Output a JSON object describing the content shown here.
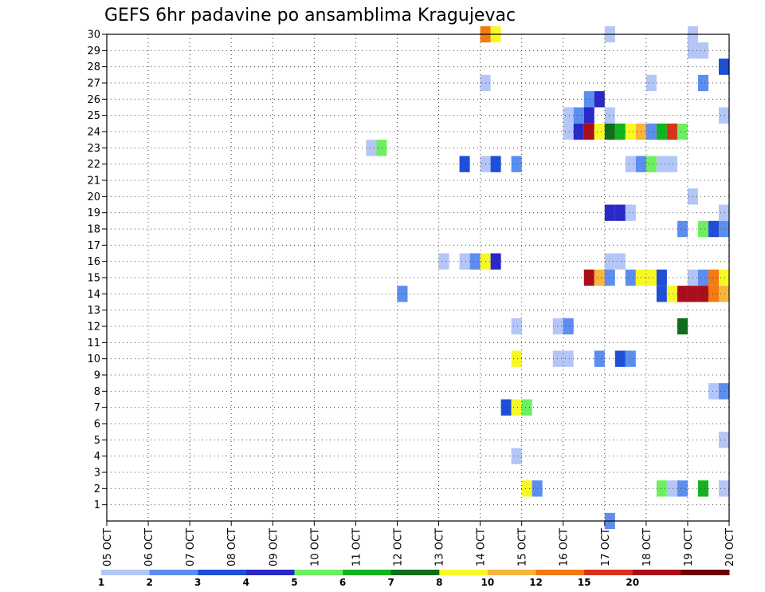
{
  "chart_data": {
    "type": "heatmap",
    "title": "GEFS 6hr padavine po ansamblima Kragujevac",
    "xlabel": "",
    "ylabel": "",
    "x_ticks": [
      "05 OCT",
      "06 OCT",
      "07 OCT",
      "08 OCT",
      "09 OCT",
      "10 OCT",
      "11 OCT",
      "12 OCT",
      "13 OCT",
      "14 OCT",
      "15 OCT",
      "16 OCT",
      "17 OCT",
      "18 OCT",
      "19 OCT",
      "20 OCT"
    ],
    "x_range": [
      0,
      60
    ],
    "y_ticks": [
      1,
      2,
      3,
      4,
      5,
      6,
      7,
      8,
      9,
      10,
      11,
      12,
      13,
      14,
      15,
      16,
      17,
      18,
      19,
      20,
      21,
      22,
      23,
      24,
      25,
      26,
      27,
      28,
      29,
      30
    ],
    "y_range": [
      0,
      30
    ],
    "grid": true,
    "legend_position": "bottom",
    "legend": {
      "labels": [
        "1",
        "2",
        "3",
        "4",
        "5",
        "6",
        "7",
        "8",
        "10",
        "12",
        "15",
        "20"
      ],
      "colors": [
        "#b4c6f8",
        "#5c8ef0",
        "#1f4fd8",
        "#2929c8",
        "#6cf060",
        "#12b41e",
        "#0e6e1a",
        "#f8f826",
        "#f8b43c",
        "#f47a12",
        "#d8321a",
        "#aa0e1a",
        "#6e0000"
      ]
    },
    "cells": [
      {
        "member": 30,
        "period": 36,
        "level": 10
      },
      {
        "member": 30,
        "period": 37,
        "level": 8
      },
      {
        "member": 30,
        "period": 48,
        "level": 1
      },
      {
        "member": 30,
        "period": 56,
        "level": 1
      },
      {
        "member": 29,
        "period": 56,
        "level": 1
      },
      {
        "member": 29,
        "period": 57,
        "level": 1
      },
      {
        "member": 28,
        "period": 59,
        "level": 3
      },
      {
        "member": 27,
        "period": 36,
        "level": 1
      },
      {
        "member": 27,
        "period": 52,
        "level": 1
      },
      {
        "member": 27,
        "period": 57,
        "level": 2
      },
      {
        "member": 26,
        "period": 46,
        "level": 2
      },
      {
        "member": 26,
        "period": 47,
        "level": 4
      },
      {
        "member": 25,
        "period": 44,
        "level": 1
      },
      {
        "member": 25,
        "period": 45,
        "level": 2
      },
      {
        "member": 25,
        "period": 46,
        "level": 4
      },
      {
        "member": 25,
        "period": 48,
        "level": 1
      },
      {
        "member": 25,
        "period": 59,
        "level": 1
      },
      {
        "member": 24,
        "period": 44,
        "level": 1
      },
      {
        "member": 24,
        "period": 45,
        "level": 4
      },
      {
        "member": 24,
        "period": 46,
        "level": 12
      },
      {
        "member": 24,
        "period": 47,
        "level": 8
      },
      {
        "member": 24,
        "period": 48,
        "level": 7
      },
      {
        "member": 24,
        "period": 49,
        "level": 6
      },
      {
        "member": 24,
        "period": 50,
        "level": 8
      },
      {
        "member": 24,
        "period": 51,
        "level": 9
      },
      {
        "member": 24,
        "period": 52,
        "level": 2
      },
      {
        "member": 24,
        "period": 53,
        "level": 6
      },
      {
        "member": 24,
        "period": 54,
        "level": 11
      },
      {
        "member": 24,
        "period": 55,
        "level": 5
      },
      {
        "member": 23,
        "period": 25,
        "level": 1
      },
      {
        "member": 23,
        "period": 26,
        "level": 5
      },
      {
        "member": 22,
        "period": 34,
        "level": 3
      },
      {
        "member": 22,
        "period": 36,
        "level": 1
      },
      {
        "member": 22,
        "period": 37,
        "level": 3
      },
      {
        "member": 22,
        "period": 39,
        "level": 2
      },
      {
        "member": 22,
        "period": 50,
        "level": 1
      },
      {
        "member": 22,
        "period": 51,
        "level": 2
      },
      {
        "member": 22,
        "period": 52,
        "level": 5
      },
      {
        "member": 22,
        "period": 53,
        "level": 1
      },
      {
        "member": 22,
        "period": 54,
        "level": 1
      },
      {
        "member": 20,
        "period": 56,
        "level": 1
      },
      {
        "member": 19,
        "period": 48,
        "level": 4
      },
      {
        "member": 19,
        "period": 49,
        "level": 4
      },
      {
        "member": 19,
        "period": 50,
        "level": 1
      },
      {
        "member": 19,
        "period": 59,
        "level": 1
      },
      {
        "member": 18,
        "period": 55,
        "level": 2
      },
      {
        "member": 18,
        "period": 57,
        "level": 5
      },
      {
        "member": 18,
        "period": 58,
        "level": 3
      },
      {
        "member": 18,
        "period": 59,
        "level": 2
      },
      {
        "member": 16,
        "period": 32,
        "level": 1
      },
      {
        "member": 16,
        "period": 34,
        "level": 1
      },
      {
        "member": 16,
        "period": 35,
        "level": 2
      },
      {
        "member": 16,
        "period": 36,
        "level": 8
      },
      {
        "member": 16,
        "period": 37,
        "level": 4
      },
      {
        "member": 16,
        "period": 48,
        "level": 1
      },
      {
        "member": 16,
        "period": 49,
        "level": 1
      },
      {
        "member": 15,
        "period": 46,
        "level": 12
      },
      {
        "member": 15,
        "period": 47,
        "level": 9
      },
      {
        "member": 15,
        "period": 48,
        "level": 2
      },
      {
        "member": 15,
        "period": 50,
        "level": 2
      },
      {
        "member": 15,
        "period": 51,
        "level": 8
      },
      {
        "member": 15,
        "period": 52,
        "level": 8
      },
      {
        "member": 15,
        "period": 53,
        "level": 3
      },
      {
        "member": 15,
        "period": 56,
        "level": 1
      },
      {
        "member": 15,
        "period": 57,
        "level": 2
      },
      {
        "member": 15,
        "period": 58,
        "level": 10
      },
      {
        "member": 15,
        "period": 59,
        "level": 8
      },
      {
        "member": 14,
        "period": 28,
        "level": 2
      },
      {
        "member": 14,
        "period": 53,
        "level": 3
      },
      {
        "member": 14,
        "period": 54,
        "level": 8
      },
      {
        "member": 14,
        "period": 55,
        "level": 12
      },
      {
        "member": 14,
        "period": 56,
        "level": 12
      },
      {
        "member": 14,
        "period": 57,
        "level": 12
      },
      {
        "member": 14,
        "period": 58,
        "level": 10
      },
      {
        "member": 14,
        "period": 59,
        "level": 9
      },
      {
        "member": 12,
        "period": 39,
        "level": 1
      },
      {
        "member": 12,
        "period": 43,
        "level": 1
      },
      {
        "member": 12,
        "period": 44,
        "level": 2
      },
      {
        "member": 12,
        "period": 55,
        "level": 7
      },
      {
        "member": 10,
        "period": 39,
        "level": 8
      },
      {
        "member": 10,
        "period": 43,
        "level": 1
      },
      {
        "member": 10,
        "period": 44,
        "level": 1
      },
      {
        "member": 10,
        "period": 47,
        "level": 2
      },
      {
        "member": 10,
        "period": 49,
        "level": 3
      },
      {
        "member": 10,
        "period": 50,
        "level": 2
      },
      {
        "member": 8,
        "period": 58,
        "level": 1
      },
      {
        "member": 8,
        "period": 59,
        "level": 2
      },
      {
        "member": 7,
        "period": 38,
        "level": 3
      },
      {
        "member": 7,
        "period": 39,
        "level": 8
      },
      {
        "member": 7,
        "period": 40,
        "level": 5
      },
      {
        "member": 5,
        "period": 59,
        "level": 1
      },
      {
        "member": 4,
        "period": 39,
        "level": 1
      },
      {
        "member": 2,
        "period": 40,
        "level": 8
      },
      {
        "member": 2,
        "period": 41,
        "level": 2
      },
      {
        "member": 2,
        "period": 53,
        "level": 5
      },
      {
        "member": 2,
        "period": 54,
        "level": 1
      },
      {
        "member": 2,
        "period": 55,
        "level": 2
      },
      {
        "member": 2,
        "period": 57,
        "level": 6
      },
      {
        "member": 2,
        "period": 59,
        "level": 1
      },
      {
        "member": 0,
        "period": 48,
        "level": 2
      }
    ]
  }
}
